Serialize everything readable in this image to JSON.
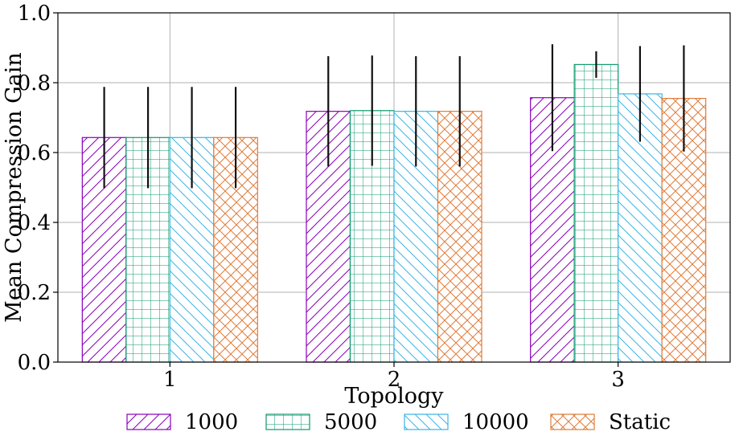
{
  "chart_data": {
    "type": "bar",
    "title": "",
    "xlabel": "Topology",
    "ylabel": "Mean Compression Gain",
    "categories": [
      "1",
      "2",
      "3"
    ],
    "ylim": [
      0,
      1
    ],
    "yticks": [
      "0.0",
      "0.2",
      "0.4",
      "0.6",
      "0.8",
      "1.0"
    ],
    "grid": true,
    "legend_position": "bottom",
    "series": [
      {
        "name": "1000",
        "color": "#8800bb",
        "hatch": "diagonal-forward",
        "values": [
          0.643,
          0.718,
          0.757
        ],
        "errors": [
          0.145,
          0.158,
          0.153
        ]
      },
      {
        "name": "5000",
        "color": "#0b9a6d",
        "hatch": "grid",
        "values": [
          0.643,
          0.72,
          0.852
        ],
        "errors": [
          0.145,
          0.158,
          0.038
        ]
      },
      {
        "name": "10000",
        "color": "#3ab5e6",
        "hatch": "diagonal-backward",
        "values": [
          0.643,
          0.718,
          0.768
        ],
        "errors": [
          0.145,
          0.158,
          0.137
        ]
      },
      {
        "name": "Static",
        "color": "#e07b39",
        "hatch": "crosshatch",
        "values": [
          0.643,
          0.718,
          0.755
        ],
        "errors": [
          0.145,
          0.158,
          0.152
        ]
      }
    ]
  }
}
